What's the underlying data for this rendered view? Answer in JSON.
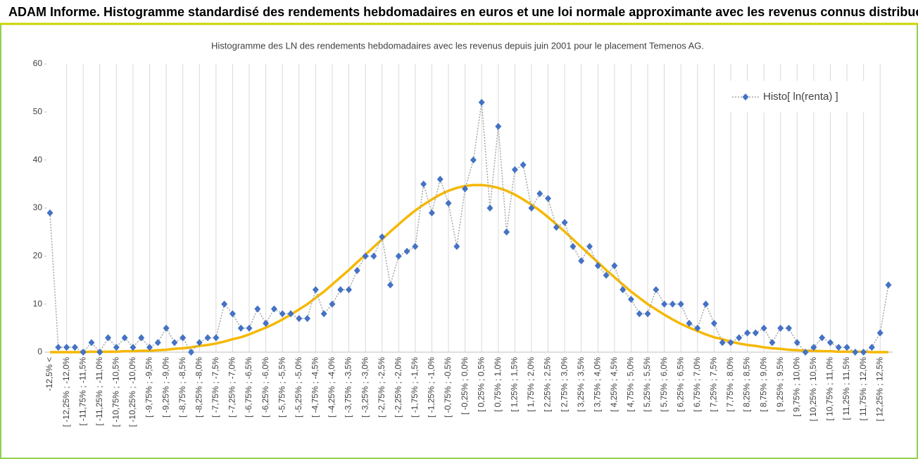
{
  "chart_data": {
    "type": "line",
    "header": "ADAM Informe. Histogramme standardisé des rendements hebdomadaires en euros et une loi normale approximante avec les revenus connus distribués",
    "title": "Histogramme des LN des rendements hebdomadaires avec les revenus depuis juin 2001 pour le placement Temenos AG.",
    "categories": [
      "-12,5% <",
      null,
      "[ -12,25% ; -12,0%",
      null,
      "[ -11,75% ; -11,5%",
      null,
      "[ -11,25% ; -11,0%",
      null,
      "[ -10,75% ; -10,5%",
      null,
      "[ -10,25% ; -10,0%",
      null,
      "[ -9,75% ; -9,5%",
      null,
      "[ -9,25% ; -9,0%",
      null,
      "[ -8,75% ; -8,5%",
      null,
      "[ -8,25% ; -8,0%",
      null,
      "[ -7,75% ; -7,5%",
      null,
      "[ -7,25% ; -7,0%",
      null,
      "[ -6,75% ; -6,5%",
      null,
      "[ -6,25% ; -6,0%",
      null,
      "[ -5,75% ; -5,5%",
      null,
      "[ -5,25% ; -5,0%",
      null,
      "[ -4,75% ; -4,5%",
      null,
      "[ -4,25% ; -4,0%",
      null,
      "[ -3,75% ; -3,5%",
      null,
      "[ -3,25% ; -3,0%",
      null,
      "[ -2,75% ; -2,5%",
      null,
      "[ -2,25% ; -2,0%",
      null,
      "[ -1,75% ; -1,5%",
      null,
      "[ -1,25% ; -1,0%",
      null,
      "[ -0,75% ; -0,5%",
      null,
      "[ -0,25% ; 0,0%",
      null,
      "[ 0,25% ; 0,5%",
      null,
      "[ 0,75% ; 1,0%",
      null,
      "[ 1,25% ; 1,5%",
      null,
      "[ 1,75% ; 2,0%",
      null,
      "[ 2,25% ; 2,5%",
      null,
      "[ 2,75% ; 3,0%",
      null,
      "[ 3,25% ; 3,5%",
      null,
      "[ 3,75% ; 4,0%",
      null,
      "[ 4,25% ; 4,5%",
      null,
      "[ 4,75% ; 5,0%",
      null,
      "[ 5,25% ; 5,5%",
      null,
      "[ 5,75% ; 6,0%",
      null,
      "[ 6,25% ; 6,5%",
      null,
      "[ 6,75% ; 7,0%",
      null,
      "[ 7,25% ; 7,5%",
      null,
      "[ 7,75% ; 8,0%",
      null,
      "[ 8,25% ; 8,5%",
      null,
      "[ 8,75% ; 9,0%",
      null,
      "[ 9,25% ; 9,5%",
      null,
      "[ 9,75% ; 10,0%",
      null,
      "[ 10,25% ; 10,5%",
      null,
      "[ 10,75% ; 11,0%",
      null,
      "[ 11,25% ; 11,5%",
      null,
      "[ 11,75% ; 12,0%",
      null,
      "[ 12,25% ; 12,5%",
      null
    ],
    "series": [
      {
        "name": "Histo[ ln(renta) ]",
        "color": "#4472c4",
        "line_color": "#a6a6a6",
        "values": [
          29,
          1,
          1,
          1,
          0,
          2,
          0,
          3,
          1,
          3,
          1,
          3,
          1,
          2,
          5,
          2,
          3,
          0,
          2,
          3,
          3,
          10,
          8,
          5,
          5,
          9,
          6,
          9,
          8,
          8,
          7,
          7,
          13,
          8,
          10,
          13,
          13,
          17,
          20,
          20,
          24,
          14,
          20,
          21,
          22,
          35,
          29,
          36,
          31,
          22,
          34,
          40,
          52,
          30,
          47,
          25,
          38,
          39,
          30,
          33,
          32,
          26,
          27,
          22,
          19,
          22,
          18,
          16,
          18,
          13,
          11,
          8,
          8,
          13,
          10,
          10,
          10,
          6,
          5,
          10,
          6,
          2,
          2,
          3,
          4,
          4,
          5,
          2,
          5,
          5,
          2,
          0,
          1,
          3,
          2,
          1,
          1,
          0,
          0,
          1,
          4,
          14
        ]
      },
      {
        "color": "#f5b800",
        "values": [
          0,
          0,
          0,
          0,
          0,
          0.1,
          0.1,
          0.1,
          0.1,
          0.2,
          0.2,
          0.3,
          0.3,
          0.4,
          0.5,
          0.7,
          0.8,
          1.0,
          1.3,
          1.5,
          1.8,
          2.2,
          2.7,
          3.1,
          3.7,
          4.4,
          5.1,
          5.9,
          6.8,
          7.8,
          8.9,
          10.0,
          11.3,
          12.6,
          14.1,
          15.6,
          17.1,
          18.7,
          20.3,
          21.9,
          23.5,
          25.1,
          26.6,
          28.1,
          29.5,
          30.7,
          31.8,
          32.8,
          33.6,
          34.2,
          34.6,
          34.8,
          34.8,
          34.6,
          34.2,
          33.6,
          32.8,
          31.8,
          30.7,
          29.5,
          28.1,
          26.6,
          25.1,
          23.5,
          21.9,
          20.3,
          18.7,
          17.1,
          15.6,
          14.1,
          12.6,
          11.3,
          10.0,
          8.9,
          7.8,
          6.8,
          5.9,
          5.1,
          4.4,
          3.7,
          3.1,
          2.7,
          2.2,
          1.8,
          1.5,
          1.3,
          1.0,
          0.8,
          0.7,
          0.5,
          0.4,
          0.3,
          0.3,
          0.2,
          0.2,
          0.1,
          0.1,
          0.1,
          0.1,
          0,
          0,
          0
        ]
      }
    ],
    "ylim": [
      0,
      60
    ],
    "yticks": [
      0,
      10,
      20,
      30,
      40,
      50,
      60
    ],
    "legend": "upper right"
  }
}
